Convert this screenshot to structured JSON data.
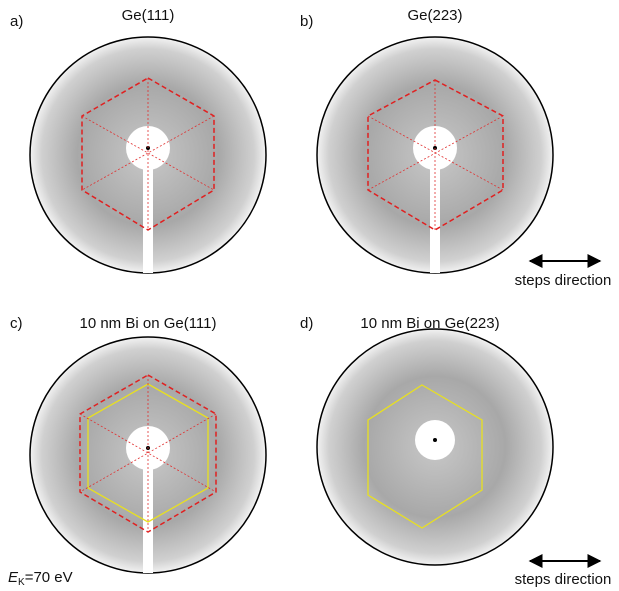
{
  "panels": [
    {
      "label": "a)",
      "title": "Ge(111)"
    },
    {
      "label": "b)",
      "title": "Ge(223)",
      "note": "steps direction"
    },
    {
      "label": "c)",
      "title": "10 nm Bi on Ge(111)"
    },
    {
      "label": "d)",
      "title": "10 nm Bi on Ge(223)",
      "note": "steps direction"
    }
  ],
  "energy": {
    "symbol": "E",
    "subscript": "K",
    "value": "=70 eV"
  }
}
